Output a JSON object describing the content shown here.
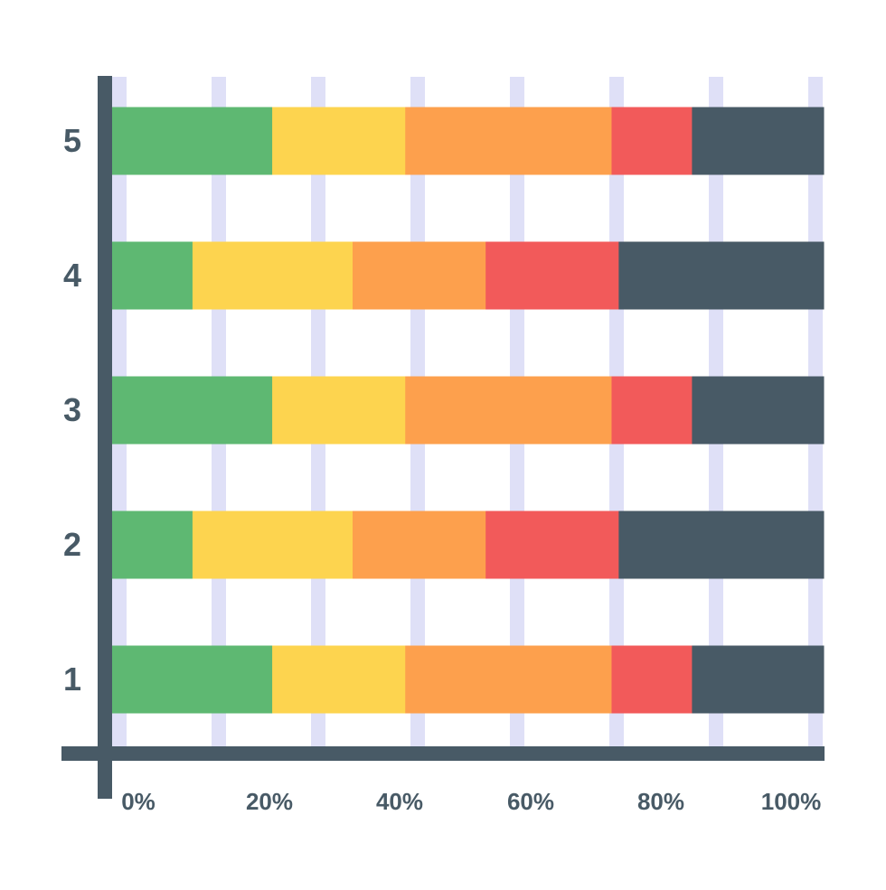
{
  "chart_data": {
    "type": "bar",
    "orientation": "horizontal",
    "stacking": "percent",
    "title": "",
    "xlabel": "",
    "ylabel": "",
    "categories": [
      "1",
      "2",
      "3",
      "4",
      "5"
    ],
    "x_tick_labels": [
      "0%",
      "20%",
      "40%",
      "60%",
      "80%",
      "100%"
    ],
    "xlim": [
      0,
      100
    ],
    "grid": true,
    "legend": "none",
    "series": [
      {
        "color": "#5eb872",
        "values": [
          22.5,
          11.3,
          22.5,
          11.3,
          22.5
        ]
      },
      {
        "color": "#fdd44f",
        "values": [
          18.7,
          22.5,
          18.7,
          22.5,
          18.7
        ]
      },
      {
        "color": "#fda04d",
        "values": [
          29.0,
          18.7,
          29.0,
          18.7,
          29.0
        ]
      },
      {
        "color": "#f25a5a",
        "values": [
          11.3,
          18.7,
          11.3,
          18.7,
          11.3
        ]
      },
      {
        "color": "#485a66",
        "values": [
          18.5,
          28.8,
          18.5,
          28.8,
          18.5
        ]
      }
    ],
    "colors": {
      "axis": "#485a66",
      "grid": "#dfe0f7",
      "tick_text": "#485a66"
    }
  }
}
